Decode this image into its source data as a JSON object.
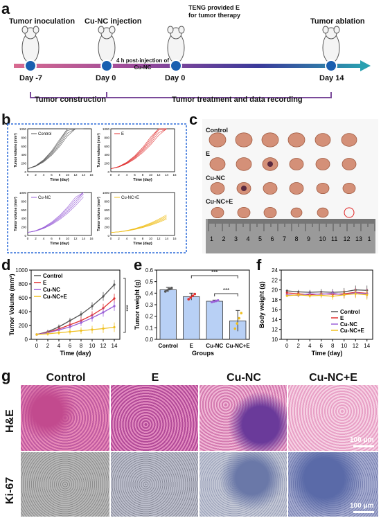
{
  "panels": {
    "a": "a",
    "b": "b",
    "c": "c",
    "d": "d",
    "e": "e",
    "f": "f",
    "g": "g"
  },
  "timeline": {
    "events": [
      {
        "top": "Tumor inoculation",
        "day": "Day -7"
      },
      {
        "top": "Cu-NC injection",
        "day": "Day 0"
      },
      {
        "top": "TENG provided E\nfor tumor therapy",
        "day": "Day 0"
      },
      {
        "top": "Tumor ablation",
        "day": "Day 14"
      }
    ],
    "middle_note": "4 h post-injection of\nCu-NC",
    "bracket_left": "Tumor construction",
    "bracket_right": "Tumor treatment and data recording"
  },
  "panel_b": {
    "xlabel": "Time (day)",
    "ylabel": "Tumor volume (mm³)",
    "xticks": [
      "0",
      "2",
      "4",
      "6",
      "8",
      "10",
      "12",
      "14",
      "16"
    ],
    "yticks": [
      "0",
      "200",
      "400",
      "600",
      "800",
      "1000"
    ],
    "subplots": [
      {
        "name": "Control",
        "color": "#555555"
      },
      {
        "name": "E",
        "color": "#e03030"
      },
      {
        "name": "Cu-NC",
        "color": "#9a60d8"
      },
      {
        "name": "Cu-NC+E",
        "color": "#f0c020"
      }
    ]
  },
  "panel_c": {
    "rows": [
      "Control",
      "E",
      "Cu-NC",
      "Cu-NC+E"
    ],
    "ruler_marks": [
      "1",
      "2",
      "3",
      "4",
      "5",
      "6",
      "7",
      "8",
      "9",
      "10",
      "11",
      "12",
      "13",
      "1"
    ]
  },
  "panel_g": {
    "columns": [
      "Control",
      "E",
      "Cu-NC",
      "Cu-NC+E"
    ],
    "rows": [
      "H&E",
      "Ki-67"
    ],
    "scale": "100 μm"
  },
  "chart_data": [
    {
      "panel": "d",
      "type": "line",
      "xlabel": "Time (day)",
      "ylabel": "Tumor Volume (mm³)",
      "x": [
        0,
        2,
        4,
        6,
        8,
        10,
        12,
        14
      ],
      "ylim": [
        0,
        1000
      ],
      "xlim": [
        -1,
        15
      ],
      "yticks": [
        0,
        200,
        400,
        600,
        800,
        1000
      ],
      "xticks": [
        0,
        2,
        4,
        6,
        8,
        10,
        12,
        14
      ],
      "legend": "top-left",
      "sig": "***",
      "series": [
        {
          "name": "Control",
          "color": "#555555",
          "values": [
            70,
            110,
            180,
            270,
            360,
            480,
            620,
            790
          ]
        },
        {
          "name": "E",
          "color": "#e03030",
          "values": [
            70,
            100,
            150,
            210,
            270,
            350,
            450,
            590
          ]
        },
        {
          "name": "Cu-NC",
          "color": "#9a60d8",
          "values": [
            70,
            95,
            135,
            180,
            240,
            310,
            390,
            480
          ]
        },
        {
          "name": "Cu-NC+E",
          "color": "#f0c020",
          "values": [
            70,
            80,
            95,
            110,
            125,
            140,
            155,
            175
          ]
        }
      ]
    },
    {
      "panel": "e",
      "type": "bar",
      "xlabel": "Groups",
      "ylabel": "Tumor weight (g)",
      "categories": [
        "Control",
        "E",
        "Cu-NC",
        "Cu-NC+E"
      ],
      "values": [
        0.43,
        0.37,
        0.33,
        0.16
      ],
      "errors": [
        0.02,
        0.03,
        0.01,
        0.09
      ],
      "colors": [
        "#b8d0f5",
        "#b8d0f5",
        "#b8d0f5",
        "#b8d0f5"
      ],
      "dot_colors": [
        "#555555",
        "#e03030",
        "#9a60d8",
        "#f0c020"
      ],
      "ylim": [
        0,
        0.6
      ],
      "yticks": [
        "0.0",
        "0.1",
        "0.2",
        "0.3",
        "0.4",
        "0.5",
        "0.6"
      ],
      "sig": "***"
    },
    {
      "panel": "f",
      "type": "line",
      "xlabel": "Time (day)",
      "ylabel": "Body weight (g)",
      "x": [
        0,
        2,
        4,
        6,
        8,
        10,
        12,
        14
      ],
      "ylim": [
        10,
        24
      ],
      "xlim": [
        -1,
        15
      ],
      "yticks": [
        10,
        12,
        14,
        16,
        18,
        20,
        22,
        24
      ],
      "xticks": [
        0,
        2,
        4,
        6,
        8,
        10,
        12,
        14
      ],
      "legend": "bottom-right",
      "series": [
        {
          "name": "Control",
          "color": "#555555",
          "values": [
            19.8,
            19.6,
            19.5,
            19.6,
            19.5,
            19.6,
            20.0,
            19.9
          ]
        },
        {
          "name": "E",
          "color": "#e03030",
          "values": [
            19.4,
            19.2,
            19.0,
            19.2,
            19.1,
            19.2,
            19.5,
            19.3
          ]
        },
        {
          "name": "Cu-NC",
          "color": "#9a60d8",
          "values": [
            19.0,
            18.9,
            19.2,
            19.1,
            19.3,
            19.0,
            19.4,
            19.2
          ]
        },
        {
          "name": "Cu-NC+E",
          "color": "#f0c020",
          "values": [
            18.8,
            19.0,
            18.8,
            18.9,
            18.7,
            19.0,
            19.2,
            19.0
          ]
        }
      ]
    }
  ]
}
